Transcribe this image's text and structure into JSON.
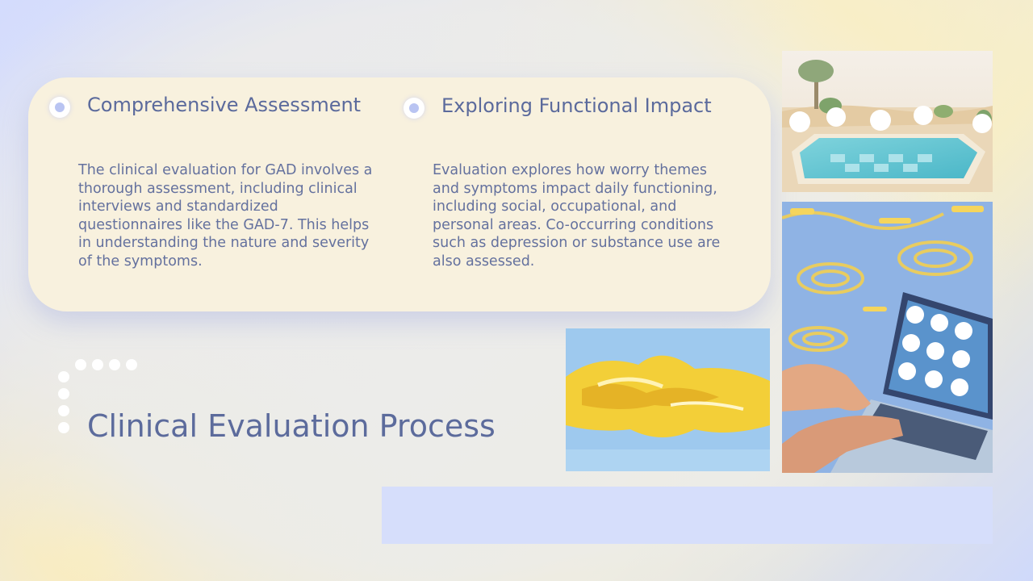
{
  "slide": {
    "title": "Clinical Evaluation Process",
    "columns": [
      {
        "heading": "Comprehensive Assessment",
        "body": "The clinical evaluation for GAD involves a thorough assessment, including clinical interviews and standardized questionnaires like the GAD-7. This helps in understanding the nature and severity of the symptoms."
      },
      {
        "heading": "Exploring Functional Impact",
        "body": "Evaluation explores how worry themes and symptoms impact daily functioning, including social, occupational, and personal areas. Co-occurring conditions such as depression or substance use are also assessed."
      }
    ]
  },
  "images": {
    "pool": "painting-pool-desert",
    "laptop": "painting-laptop-water",
    "abstract": "painting-yellow-abstract"
  },
  "colors": {
    "card": "#f8f1de",
    "text": "#5b6a9c",
    "accent_bar": "#d6defb"
  }
}
